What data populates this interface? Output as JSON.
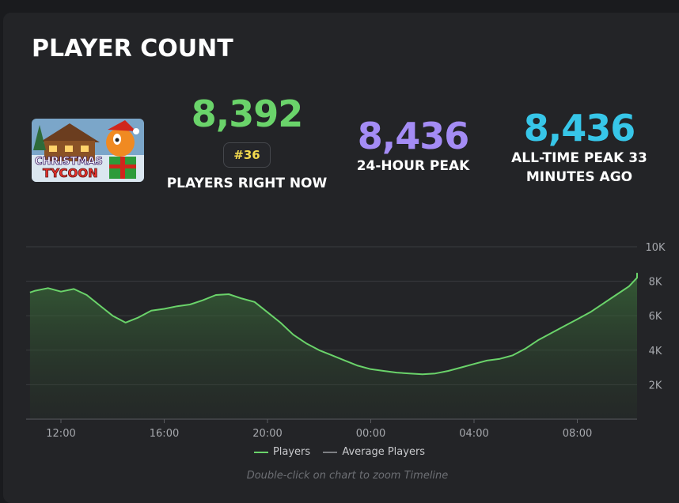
{
  "title": "PLAYER COUNT",
  "game": {
    "thumbnail_text_line1": "CHRISTMAS",
    "thumbnail_text_line2": "TYCOON"
  },
  "stats": {
    "current": {
      "value": "8,392",
      "rank": "#36",
      "label": "PLAYERS RIGHT NOW",
      "color": "#6ad36a"
    },
    "day_peak": {
      "value": "8,436",
      "label": "24-HOUR PEAK",
      "color": "#a48cf5"
    },
    "all_time": {
      "value": "8,436",
      "label_line1": "ALL-TIME PEAK 33",
      "label_line2": "MINUTES AGO",
      "color": "#37c6e8"
    }
  },
  "legend": {
    "players": "Players",
    "average": "Average Players"
  },
  "hint": "Double-click on chart to zoom Timeline",
  "chart_data": {
    "type": "area",
    "x_ticks": [
      "12:00",
      "16:00",
      "20:00",
      "00:00",
      "04:00",
      "08:00"
    ],
    "y_ticks": [
      "2K",
      "4K",
      "6K",
      "8K",
      "10K"
    ],
    "ylim": [
      0,
      10000
    ],
    "x_hours": [
      10.8,
      11,
      11.5,
      12,
      12.5,
      13,
      13.5,
      14,
      14.5,
      15,
      15.5,
      16,
      16.5,
      17,
      17.5,
      18,
      18.5,
      19,
      19.5,
      20,
      20.5,
      21,
      21.5,
      22,
      22.5,
      23,
      23.5,
      24,
      24.5,
      25,
      25.5,
      26,
      26.5,
      27,
      27.5,
      28,
      28.5,
      29,
      29.5,
      30,
      30.5,
      31,
      31.5,
      32,
      32.5,
      33,
      33.5,
      34,
      34.5,
      35,
      35.2
    ],
    "series": [
      {
        "name": "Players",
        "color": "#6ad36a",
        "values": [
          7350,
          7450,
          7600,
          7400,
          7550,
          7200,
          6600,
          6000,
          5600,
          5900,
          6300,
          6400,
          6550,
          6650,
          6900,
          7200,
          7250,
          7000,
          6800,
          6200,
          5600,
          4900,
          4400,
          4000,
          3700,
          3400,
          3100,
          2900,
          2800,
          2700,
          2650,
          2600,
          2650,
          2800,
          3000,
          3200,
          3400,
          3500,
          3700,
          4100,
          4600,
          5000,
          5400,
          5800,
          6200,
          6700,
          7200,
          7700,
          8200,
          8450,
          8400
        ]
      }
    ],
    "average_series": {
      "name": "Average Players",
      "color": "#7d7f83"
    },
    "grid": true,
    "legend_position": "bottom"
  }
}
